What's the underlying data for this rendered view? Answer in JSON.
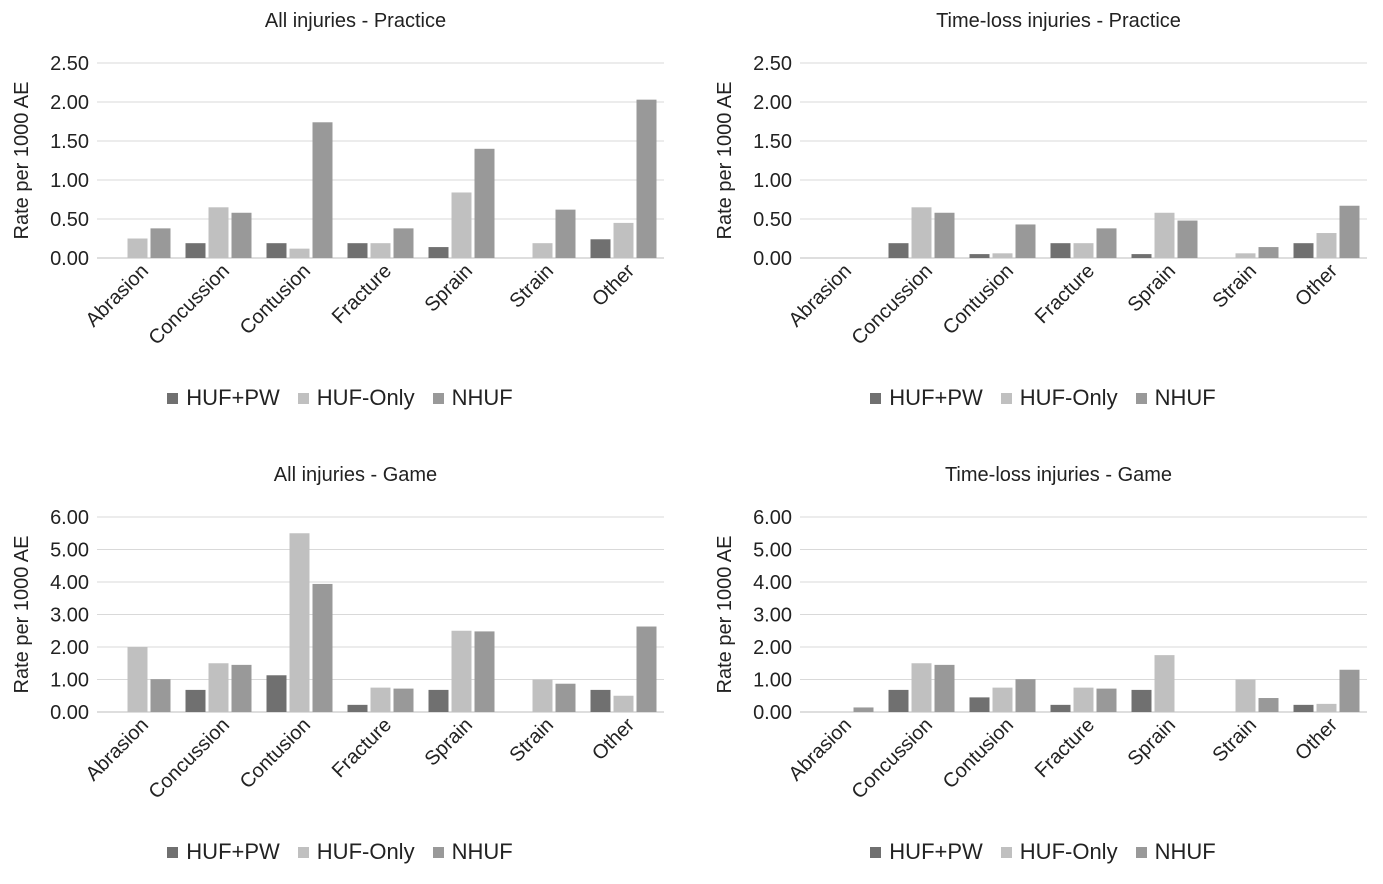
{
  "chart_data": [
    {
      "type": "bar",
      "title": "All injuries - Practice",
      "ylabel": "Rate per 1000 AE",
      "xlabel": "",
      "ylim": [
        0,
        2.5
      ],
      "yticks": [
        "0.00",
        "0.50",
        "1.00",
        "1.50",
        "2.00",
        "2.50"
      ],
      "grid": true,
      "legend_position": "bottom",
      "categories": [
        "Abrasion",
        "Concussion",
        "Contusion",
        "Fracture",
        "Sprain",
        "Strain",
        "Other"
      ],
      "series": [
        {
          "name": "HUF+PW",
          "color": "#707070",
          "values": [
            0,
            0.19,
            0.19,
            0.19,
            0.14,
            0,
            0.24
          ]
        },
        {
          "name": "HUF-Only",
          "color": "#c0c0c0",
          "values": [
            0.25,
            0.65,
            0.12,
            0.19,
            0.84,
            0.19,
            0.45
          ]
        },
        {
          "name": "NHUF",
          "color": "#999999",
          "values": [
            0.38,
            0.58,
            1.74,
            0.38,
            1.4,
            0.62,
            2.03
          ]
        }
      ]
    },
    {
      "type": "bar",
      "title": "Time-loss injuries - Practice",
      "ylabel": "Rate per 1000 AE",
      "xlabel": "",
      "ylim": [
        0,
        2.5
      ],
      "yticks": [
        "0.00",
        "0.50",
        "1.00",
        "1.50",
        "2.00",
        "2.50"
      ],
      "grid": true,
      "legend_position": "bottom",
      "categories": [
        "Abrasion",
        "Concussion",
        "Contusion",
        "Fracture",
        "Sprain",
        "Strain",
        "Other"
      ],
      "series": [
        {
          "name": "HUF+PW",
          "color": "#707070",
          "values": [
            0,
            0.19,
            0.05,
            0.19,
            0.05,
            0,
            0.19
          ]
        },
        {
          "name": "HUF-Only",
          "color": "#c0c0c0",
          "values": [
            0,
            0.65,
            0.06,
            0.19,
            0.58,
            0.06,
            0.32
          ]
        },
        {
          "name": "NHUF",
          "color": "#999999",
          "values": [
            0,
            0.58,
            0.43,
            0.38,
            0.48,
            0.14,
            0.67
          ]
        }
      ]
    },
    {
      "type": "bar",
      "title": "All injuries - Game",
      "ylabel": "Rate per 1000 AE",
      "xlabel": "",
      "ylim": [
        0,
        6
      ],
      "yticks": [
        "0.00",
        "1.00",
        "2.00",
        "3.00",
        "4.00",
        "5.00",
        "6.00"
      ],
      "grid": true,
      "legend_position": "bottom",
      "categories": [
        "Abrasion",
        "Concussion",
        "Contusion",
        "Fracture",
        "Sprain",
        "Strain",
        "Other"
      ],
      "series": [
        {
          "name": "HUF+PW",
          "color": "#707070",
          "values": [
            0,
            0.68,
            1.13,
            0.22,
            0.68,
            0,
            0.68
          ]
        },
        {
          "name": "HUF-Only",
          "color": "#c0c0c0",
          "values": [
            2.0,
            1.5,
            5.5,
            0.75,
            2.5,
            1.0,
            0.5
          ]
        },
        {
          "name": "NHUF",
          "color": "#999999",
          "values": [
            1.01,
            1.45,
            3.94,
            0.72,
            2.48,
            0.87,
            2.63
          ]
        }
      ]
    },
    {
      "type": "bar",
      "title": "Time-loss injuries - Game",
      "ylabel": "Rate per 1000 AE",
      "xlabel": "",
      "ylim": [
        0,
        6
      ],
      "yticks": [
        "0.00",
        "1.00",
        "2.00",
        "3.00",
        "4.00",
        "5.00",
        "6.00"
      ],
      "grid": true,
      "legend_position": "bottom",
      "categories": [
        "Abrasion",
        "Concussion",
        "Contusion",
        "Fracture",
        "Sprain",
        "Strain",
        "Other"
      ],
      "series": [
        {
          "name": "HUF+PW",
          "color": "#707070",
          "values": [
            0,
            0.68,
            0.45,
            0.22,
            0.68,
            0,
            0.22
          ]
        },
        {
          "name": "HUF-Only",
          "color": "#c0c0c0",
          "values": [
            0,
            1.5,
            0.75,
            0.75,
            1.75,
            1.0,
            0.25
          ]
        },
        {
          "name": "NHUF",
          "color": "#999999",
          "values": [
            0.14,
            1.45,
            1.01,
            0.72,
            0,
            0.43,
            1.3
          ]
        }
      ]
    }
  ]
}
